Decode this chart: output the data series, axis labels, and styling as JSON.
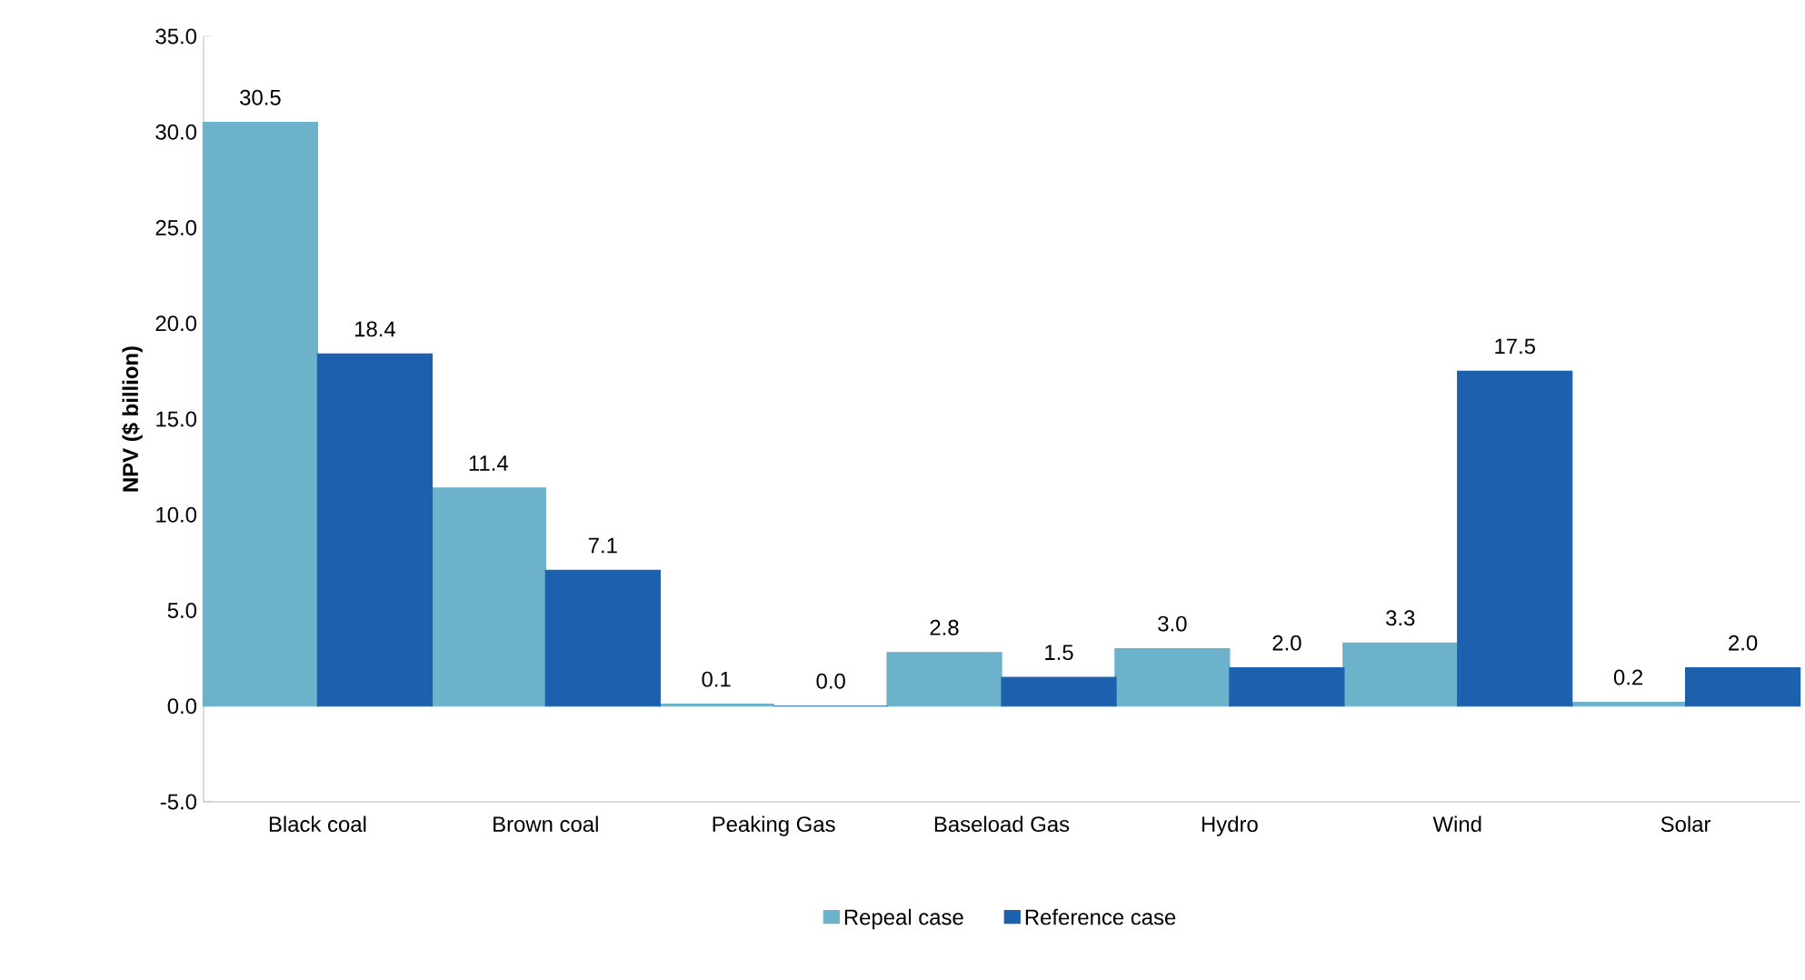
{
  "chart_data": {
    "type": "bar",
    "ylabel": "NPV ($ billion)",
    "categories": [
      "Black coal",
      "Brown coal",
      "Peaking Gas",
      "Baseload Gas",
      "Hydro",
      "Wind",
      "Solar"
    ],
    "series": [
      {
        "name": "Repeal case",
        "color": "#6cb2cb",
        "values": [
          30.5,
          11.4,
          0.1,
          2.8,
          3.0,
          3.3,
          0.2
        ],
        "value_labels": [
          "30.5",
          "11.4",
          "0.1",
          "2.8",
          "3.0",
          "3.3",
          "0.2"
        ]
      },
      {
        "name": "Reference case",
        "color": "#1d61ae",
        "values": [
          18.4,
          7.1,
          0.0,
          1.5,
          2.0,
          17.5,
          2.0
        ],
        "value_labels": [
          "18.4",
          "7.1",
          "0.0",
          "1.5",
          "2.0",
          "17.5",
          "2.0"
        ]
      }
    ],
    "ylim": [
      -5,
      35
    ],
    "yticks": [
      {
        "value": -5,
        "label": "-5.0"
      },
      {
        "value": 0,
        "label": "0.0"
      },
      {
        "value": 5,
        "label": "5.0"
      },
      {
        "value": 10,
        "label": "10.0"
      },
      {
        "value": 15,
        "label": "15.0"
      },
      {
        "value": 20,
        "label": "20.0"
      },
      {
        "value": 25,
        "label": "25.0"
      },
      {
        "value": 30,
        "label": "30.0"
      },
      {
        "value": 35,
        "label": "35.0"
      }
    ],
    "grid": false,
    "legend": "bottom"
  }
}
